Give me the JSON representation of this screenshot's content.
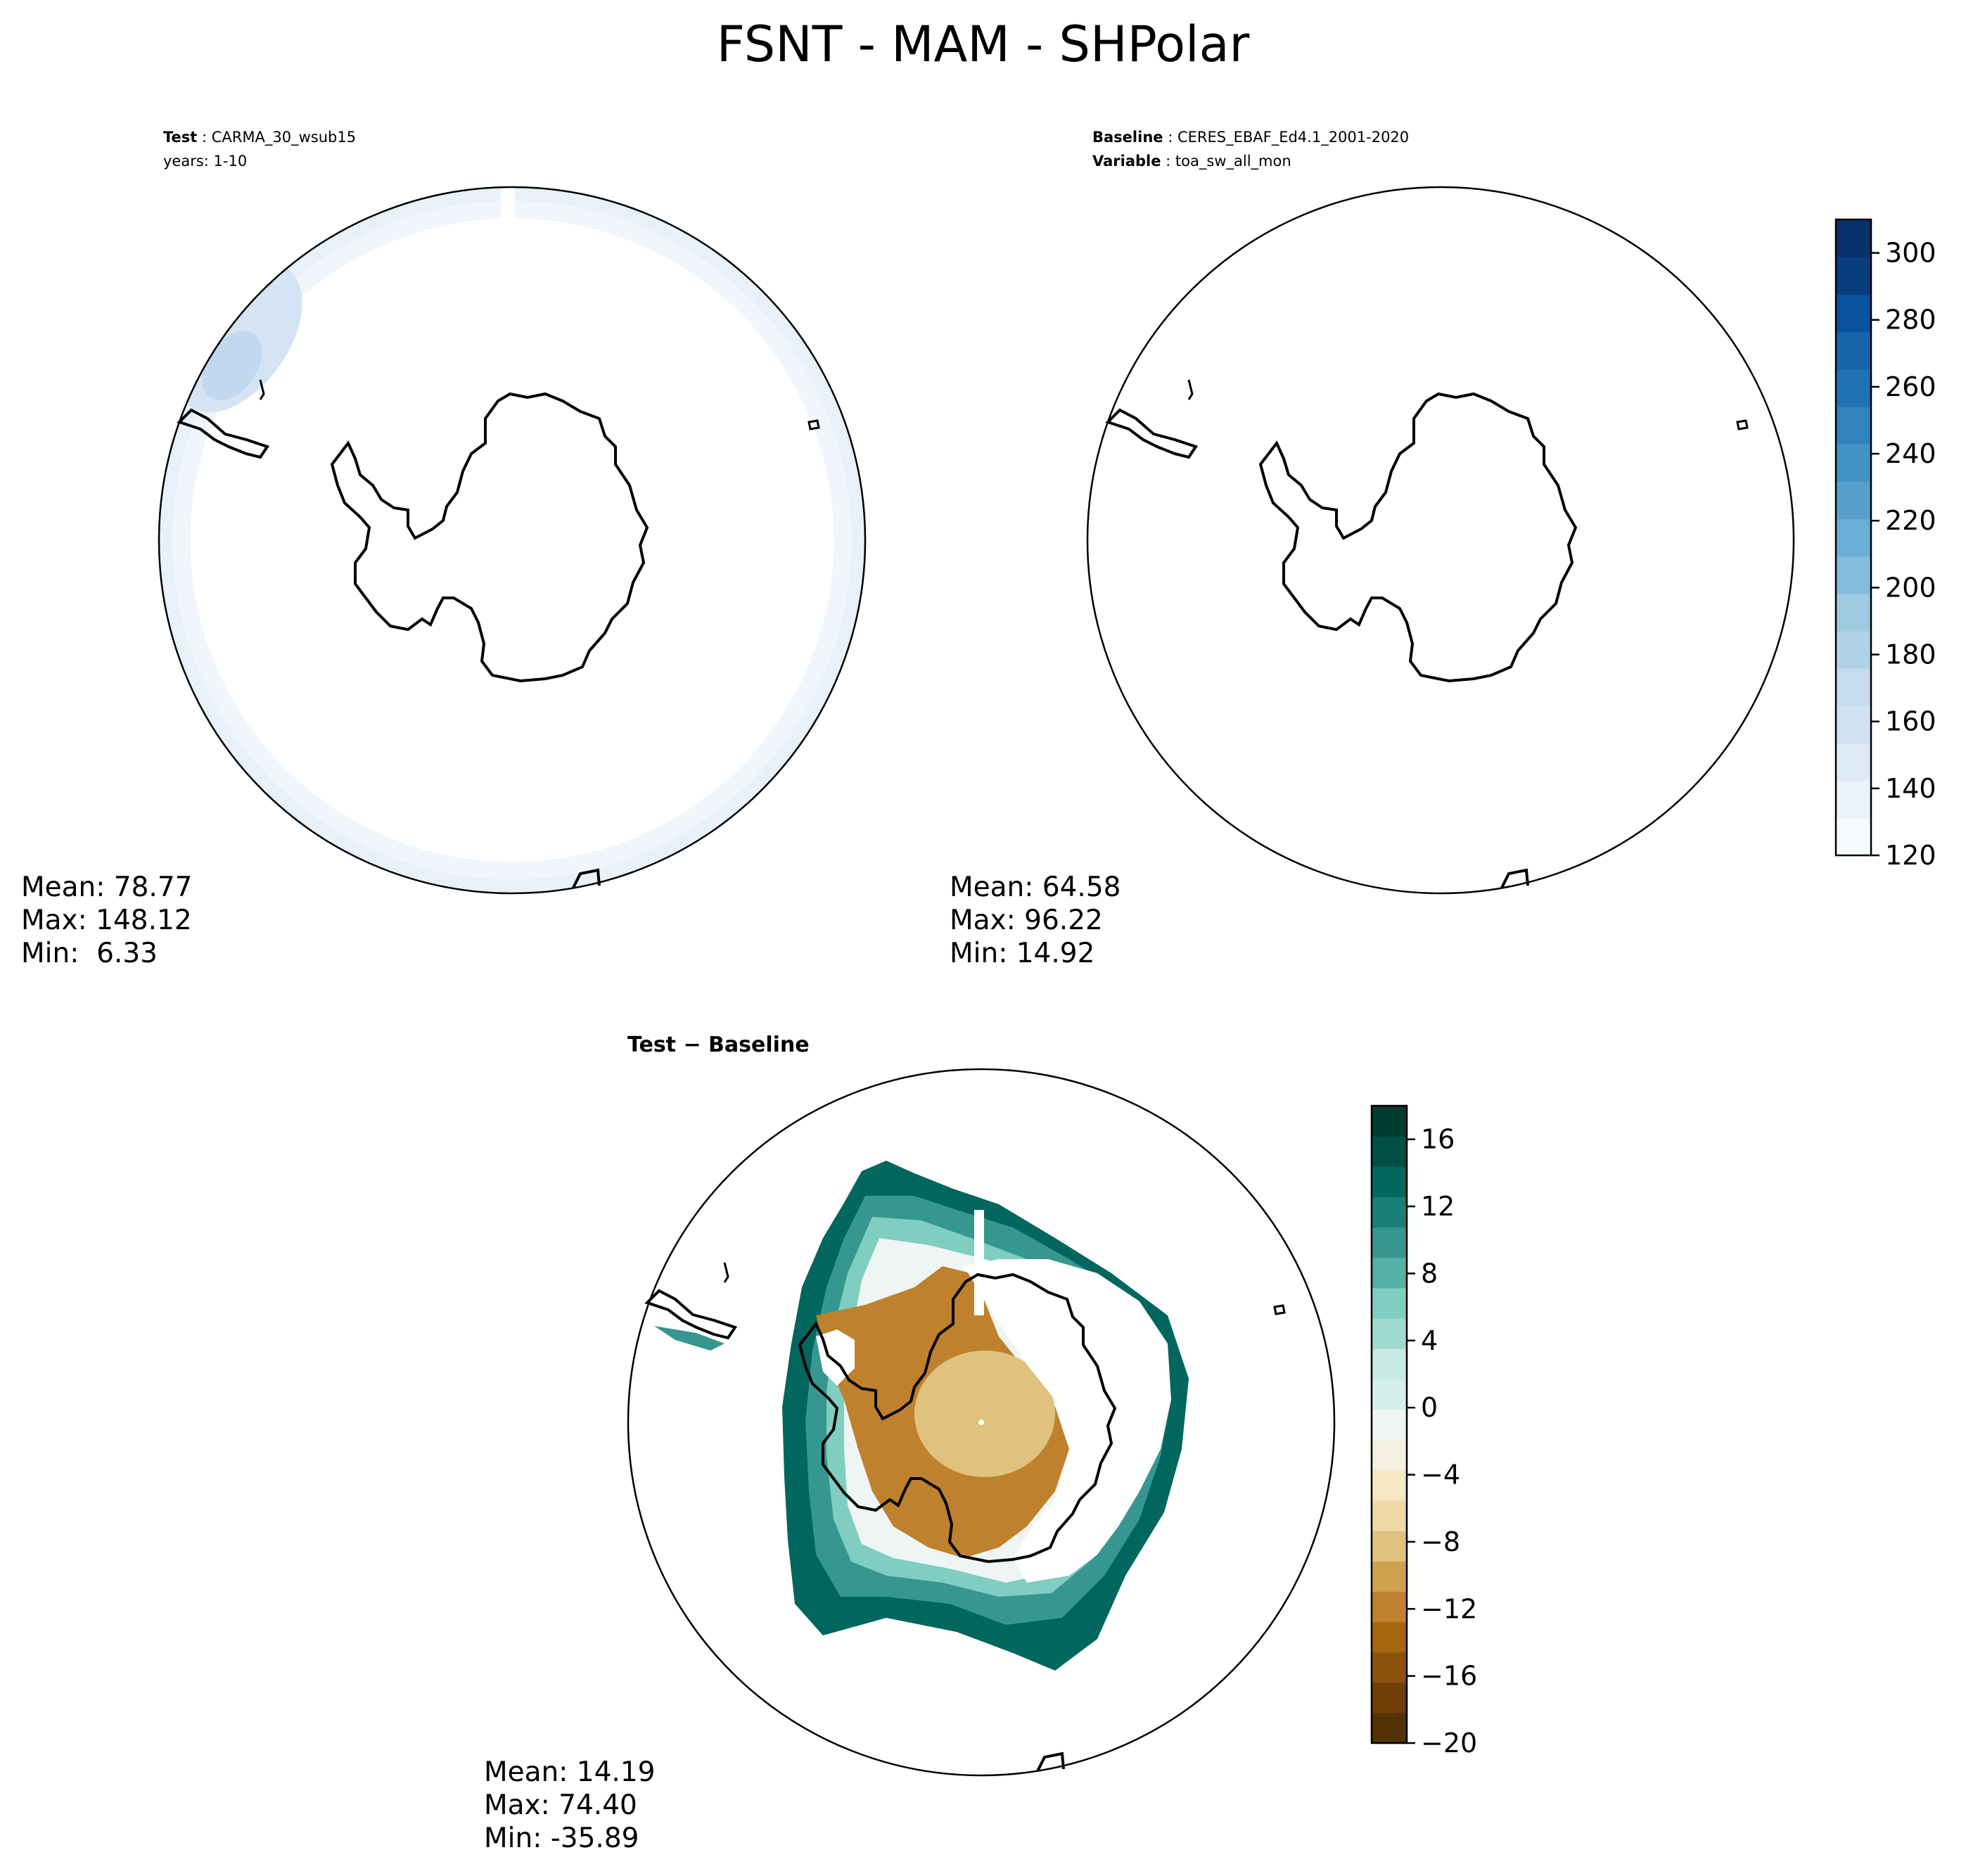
{
  "figure": {
    "title": "FSNT - MAM - SHPolar"
  },
  "panels": {
    "test": {
      "label_key": "Test",
      "label_value": "CARMA_30_wsub15",
      "line2_text": "years: 1-10",
      "stats": {
        "mean": "Mean: 78.77",
        "max": "Max: 148.12",
        "min": "Min:  6.33"
      }
    },
    "baseline": {
      "label_key": "Baseline",
      "label_value": "CERES_EBAF_Ed4.1_2001-2020",
      "line2_key": "Variable",
      "line2_value": "toa_sw_all_mon",
      "stats": {
        "mean": "Mean: 64.58",
        "max": "Max: 96.22",
        "min": "Min: 14.92"
      }
    },
    "diff": {
      "title": "Test − Baseline",
      "stats": {
        "mean": "Mean: 14.19",
        "max": "Max: 74.40",
        "min": "Min: -35.89"
      }
    }
  },
  "map_data": {
    "projection": "South Polar Stereographic",
    "region": "SHPolar",
    "season": "MAM",
    "variable": "FSNT",
    "features": [
      "Antarctica coastline",
      "South America tip",
      "Southern Ocean islands"
    ]
  },
  "colorbar_top": {
    "colormap": "Blues",
    "colors": [
      "#f7fbff",
      "#eaf3fb",
      "#deebf7",
      "#d0e1f2",
      "#c6dbef",
      "#b0d2e8",
      "#9ecae1",
      "#84bcdb",
      "#6baed6",
      "#57a0ce",
      "#4292c6",
      "#3182bd",
      "#2171b5",
      "#1764ab",
      "#08519c",
      "#083d7f",
      "#08306b"
    ],
    "min": 120,
    "max": 310,
    "ticks": [
      "120",
      "140",
      "160",
      "180",
      "200",
      "220",
      "240",
      "260",
      "280",
      "300"
    ],
    "tick_values": [
      120,
      140,
      160,
      180,
      200,
      220,
      240,
      260,
      280,
      300
    ]
  },
  "colorbar_diff": {
    "colormap": "BrBG",
    "colors": [
      "#543005",
      "#6f3d06",
      "#8c510a",
      "#a5660f",
      "#bf812d",
      "#cfa250",
      "#dfc27d",
      "#eed9a7",
      "#f6e8c3",
      "#f5f0e1",
      "#eef5f3",
      "#d5efec",
      "#c7eae5",
      "#9edad0",
      "#80cdc1",
      "#55b0a5",
      "#35978f",
      "#1a7f77",
      "#01665e",
      "#004f44",
      "#003c30"
    ],
    "min": -20,
    "max": 18,
    "ticks": [
      "−20",
      "−16",
      "−12",
      "−8",
      "−4",
      "0",
      "4",
      "8",
      "12",
      "16"
    ],
    "tick_values": [
      -20,
      -16,
      -12,
      -8,
      -4,
      0,
      4,
      8,
      12,
      16
    ]
  }
}
